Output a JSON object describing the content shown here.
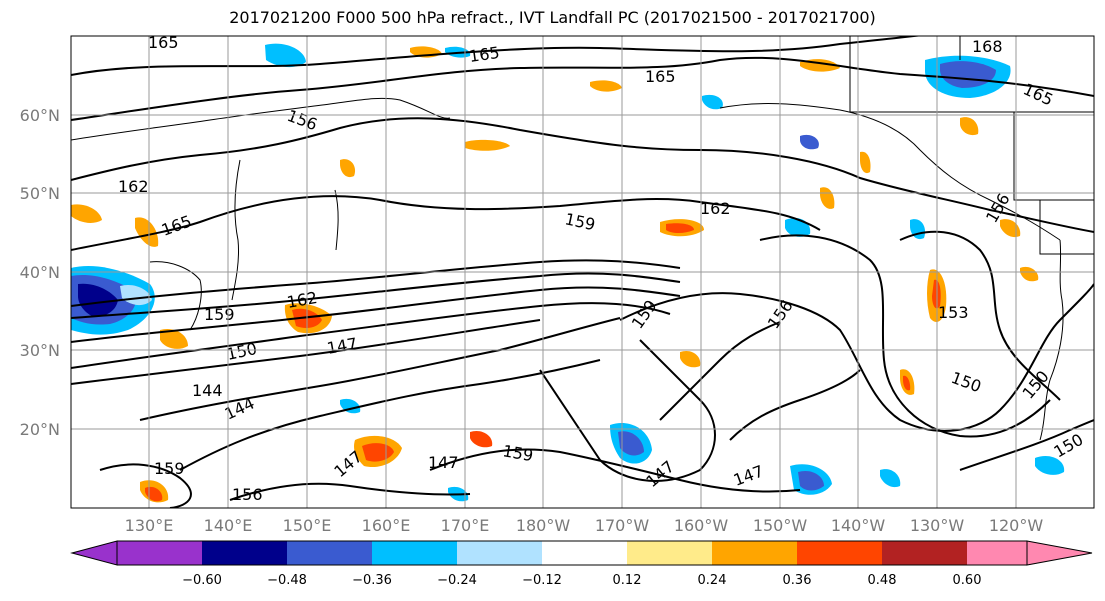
{
  "title": "2017021200 F000 500 hPa refract., IVT Landfall PC (2017021500 - 2017021700)",
  "lat_labels": [
    "60°N",
    "50°N",
    "40°N",
    "30°N",
    "20°N"
  ],
  "lon_labels": [
    "130°E",
    "140°E",
    "150°E",
    "160°E",
    "170°E",
    "180°W",
    "170°W",
    "160°W",
    "150°W",
    "140°W",
    "130°W",
    "120°W"
  ],
  "contour_labels": [
    "165",
    "165",
    "165",
    "168",
    "165",
    "162",
    "165",
    "159",
    "162",
    "162",
    "159",
    "150",
    "147",
    "144",
    "144",
    "159",
    "156",
    "153",
    "150",
    "150",
    "150",
    "159",
    "147",
    "156",
    "156",
    "159",
    "147",
    "147",
    "147",
    "156"
  ],
  "colorbar": {
    "ticks": [
      "−0.60",
      "−0.48",
      "−0.36",
      "−0.24",
      "−0.12",
      "0.12",
      "0.24",
      "0.36",
      "0.48",
      "0.60"
    ],
    "colors": [
      "#9932cc",
      "#00008b",
      "#3a5bd0",
      "#00bfff",
      "#b0e2ff",
      "#ffffff",
      "#ffeb8a",
      "#ffa500",
      "#ff4500",
      "#b22222",
      "#ff88b0"
    ]
  }
}
